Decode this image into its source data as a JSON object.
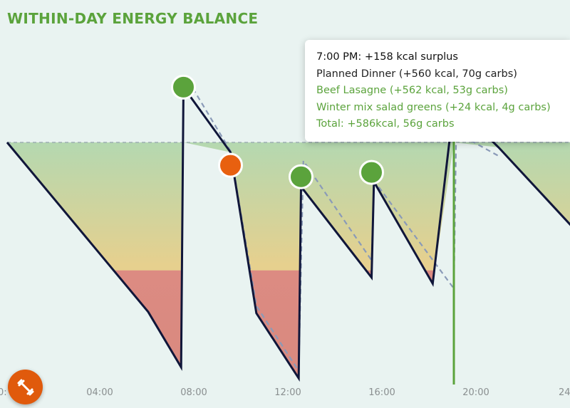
{
  "title": "WITHIN-DAY ENERGY BALANCE",
  "tooltip": {
    "heading": "7:00 PM: +158 kcal surplus",
    "meal": "Planned Dinner (+560 kcal, 70g carbs)",
    "items": [
      "Beef Lasagne (+562 kcal, 53g carbs)",
      "Winter mix salad greens (+24 kcal, 4g carbs)"
    ],
    "total": "Total: +586kcal, 56g carbs"
  },
  "fab": {
    "icon": "dumbbell-icon",
    "color": "#e05a0c"
  },
  "colors": {
    "accent": "#5ba33c",
    "line": "#10163a",
    "planned_line": "#8a9ab8",
    "meal_marker": "#5ba33c",
    "warning_marker": "#e8600f",
    "cursor": "#5ba33c",
    "zone_top": "#b4d8b0",
    "zone_mid": "#e6d08e",
    "zone_low": "#dc8b82"
  },
  "chart_data": {
    "type": "line",
    "x_ticks": [
      "0:",
      "04:00",
      "08:00",
      "12:00",
      "16:00",
      "20:00",
      "24"
    ],
    "xlim": [
      0,
      24
    ],
    "ylim": [
      -1000,
      300
    ],
    "grid": false,
    "series": [
      {
        "values": [
          {
            "x": 0.0,
            "y": 0
          },
          {
            "x": 6.0,
            "y": -690
          },
          {
            "x": 7.4,
            "y": -915
          },
          {
            "x": 7.5,
            "y": 225
          },
          {
            "x": 9.5,
            "y": -40
          },
          {
            "x": 10.6,
            "y": -695
          },
          {
            "x": 12.4,
            "y": -960
          },
          {
            "x": 12.5,
            "y": -180
          },
          {
            "x": 15.5,
            "y": -550
          },
          {
            "x": 15.6,
            "y": -160
          },
          {
            "x": 18.1,
            "y": -575
          },
          {
            "x": 19.0,
            "y": 158
          },
          {
            "x": 20.9,
            "y": -20
          },
          {
            "x": 24.0,
            "y": -340
          }
        ]
      },
      {
        "values": [
          {
            "x": 7.9,
            "y": 220
          },
          {
            "x": 9.5,
            "y": -35
          },
          {
            "x": 10.6,
            "y": -665
          },
          {
            "x": 12.4,
            "y": -930
          },
          {
            "x": 12.6,
            "y": -75
          },
          {
            "x": 15.5,
            "y": -480
          },
          {
            "x": 15.6,
            "y": -155
          },
          {
            "x": 19.0,
            "y": -595
          },
          {
            "x": 19.1,
            "y": 40
          },
          {
            "x": 20.9,
            "y": -55
          }
        ]
      }
    ],
    "meal_markers": [
      {
        "x": 7.5,
        "y": 225,
        "kind": "meal"
      },
      {
        "x": 9.5,
        "y": -93,
        "kind": "warning"
      },
      {
        "x": 12.5,
        "y": -140,
        "kind": "meal"
      },
      {
        "x": 15.5,
        "y": -122,
        "kind": "meal"
      },
      {
        "x": 21.0,
        "y": 340,
        "kind": "hollow"
      }
    ],
    "cursor_x": 19.0,
    "baseline": 0
  }
}
